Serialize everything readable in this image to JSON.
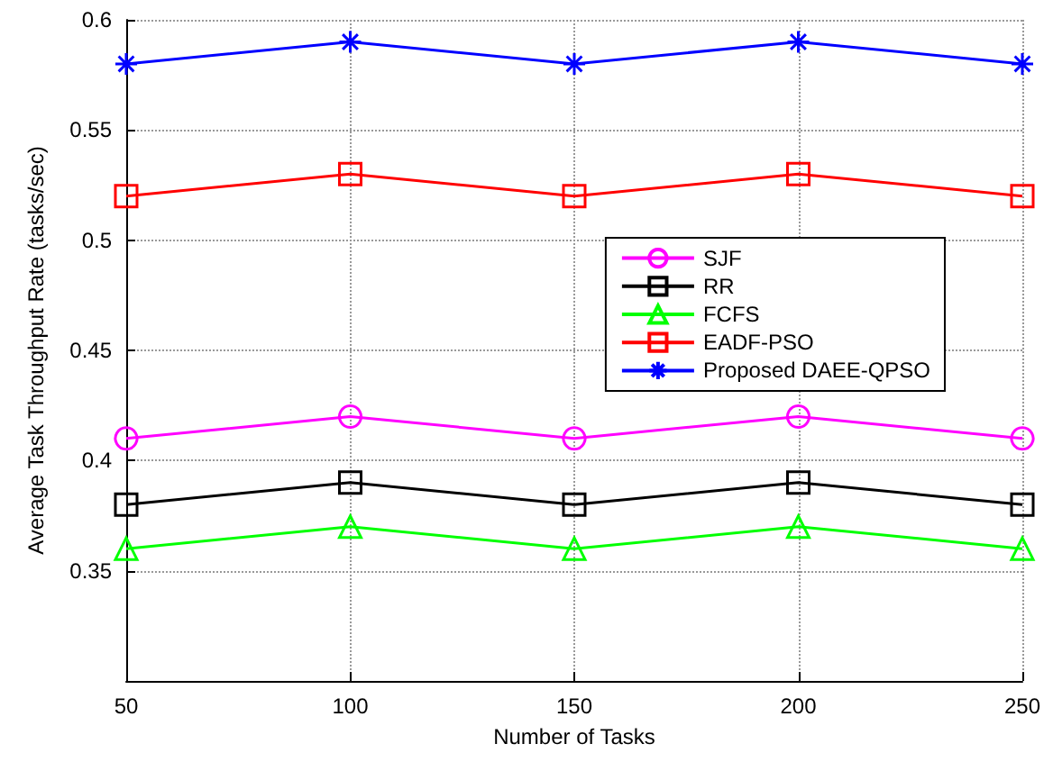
{
  "chart_data": {
    "type": "line",
    "xlabel": "Number of Tasks",
    "ylabel": "Average Task Throughput Rate (tasks/sec)",
    "x": [
      50,
      100,
      150,
      200,
      250
    ],
    "xlim": [
      50,
      250
    ],
    "xticks": [
      50,
      100,
      150,
      200,
      250
    ],
    "ylim": [
      0.3,
      0.6
    ],
    "yticks": [
      0.35,
      0.4,
      0.45,
      0.5,
      0.55,
      0.6
    ],
    "grid": true,
    "legend": "right",
    "series": [
      {
        "name": "SJF",
        "color": "#ff00ff",
        "marker": "circle",
        "values": [
          0.41,
          0.42,
          0.41,
          0.42,
          0.41
        ]
      },
      {
        "name": "RR",
        "color": "#000000",
        "marker": "square",
        "values": [
          0.38,
          0.39,
          0.38,
          0.39,
          0.38
        ]
      },
      {
        "name": "FCFS",
        "color": "#00ff00",
        "marker": "triangle",
        "values": [
          0.36,
          0.37,
          0.36,
          0.37,
          0.36
        ]
      },
      {
        "name": "EADF-PSO",
        "color": "#ff0000",
        "marker": "square",
        "values": [
          0.52,
          0.53,
          0.52,
          0.53,
          0.52
        ]
      },
      {
        "name": "Proposed DAEE-QPSO",
        "color": "#0000ff",
        "marker": "cross",
        "values": [
          0.58,
          0.59,
          0.58,
          0.59,
          0.58
        ]
      }
    ]
  }
}
